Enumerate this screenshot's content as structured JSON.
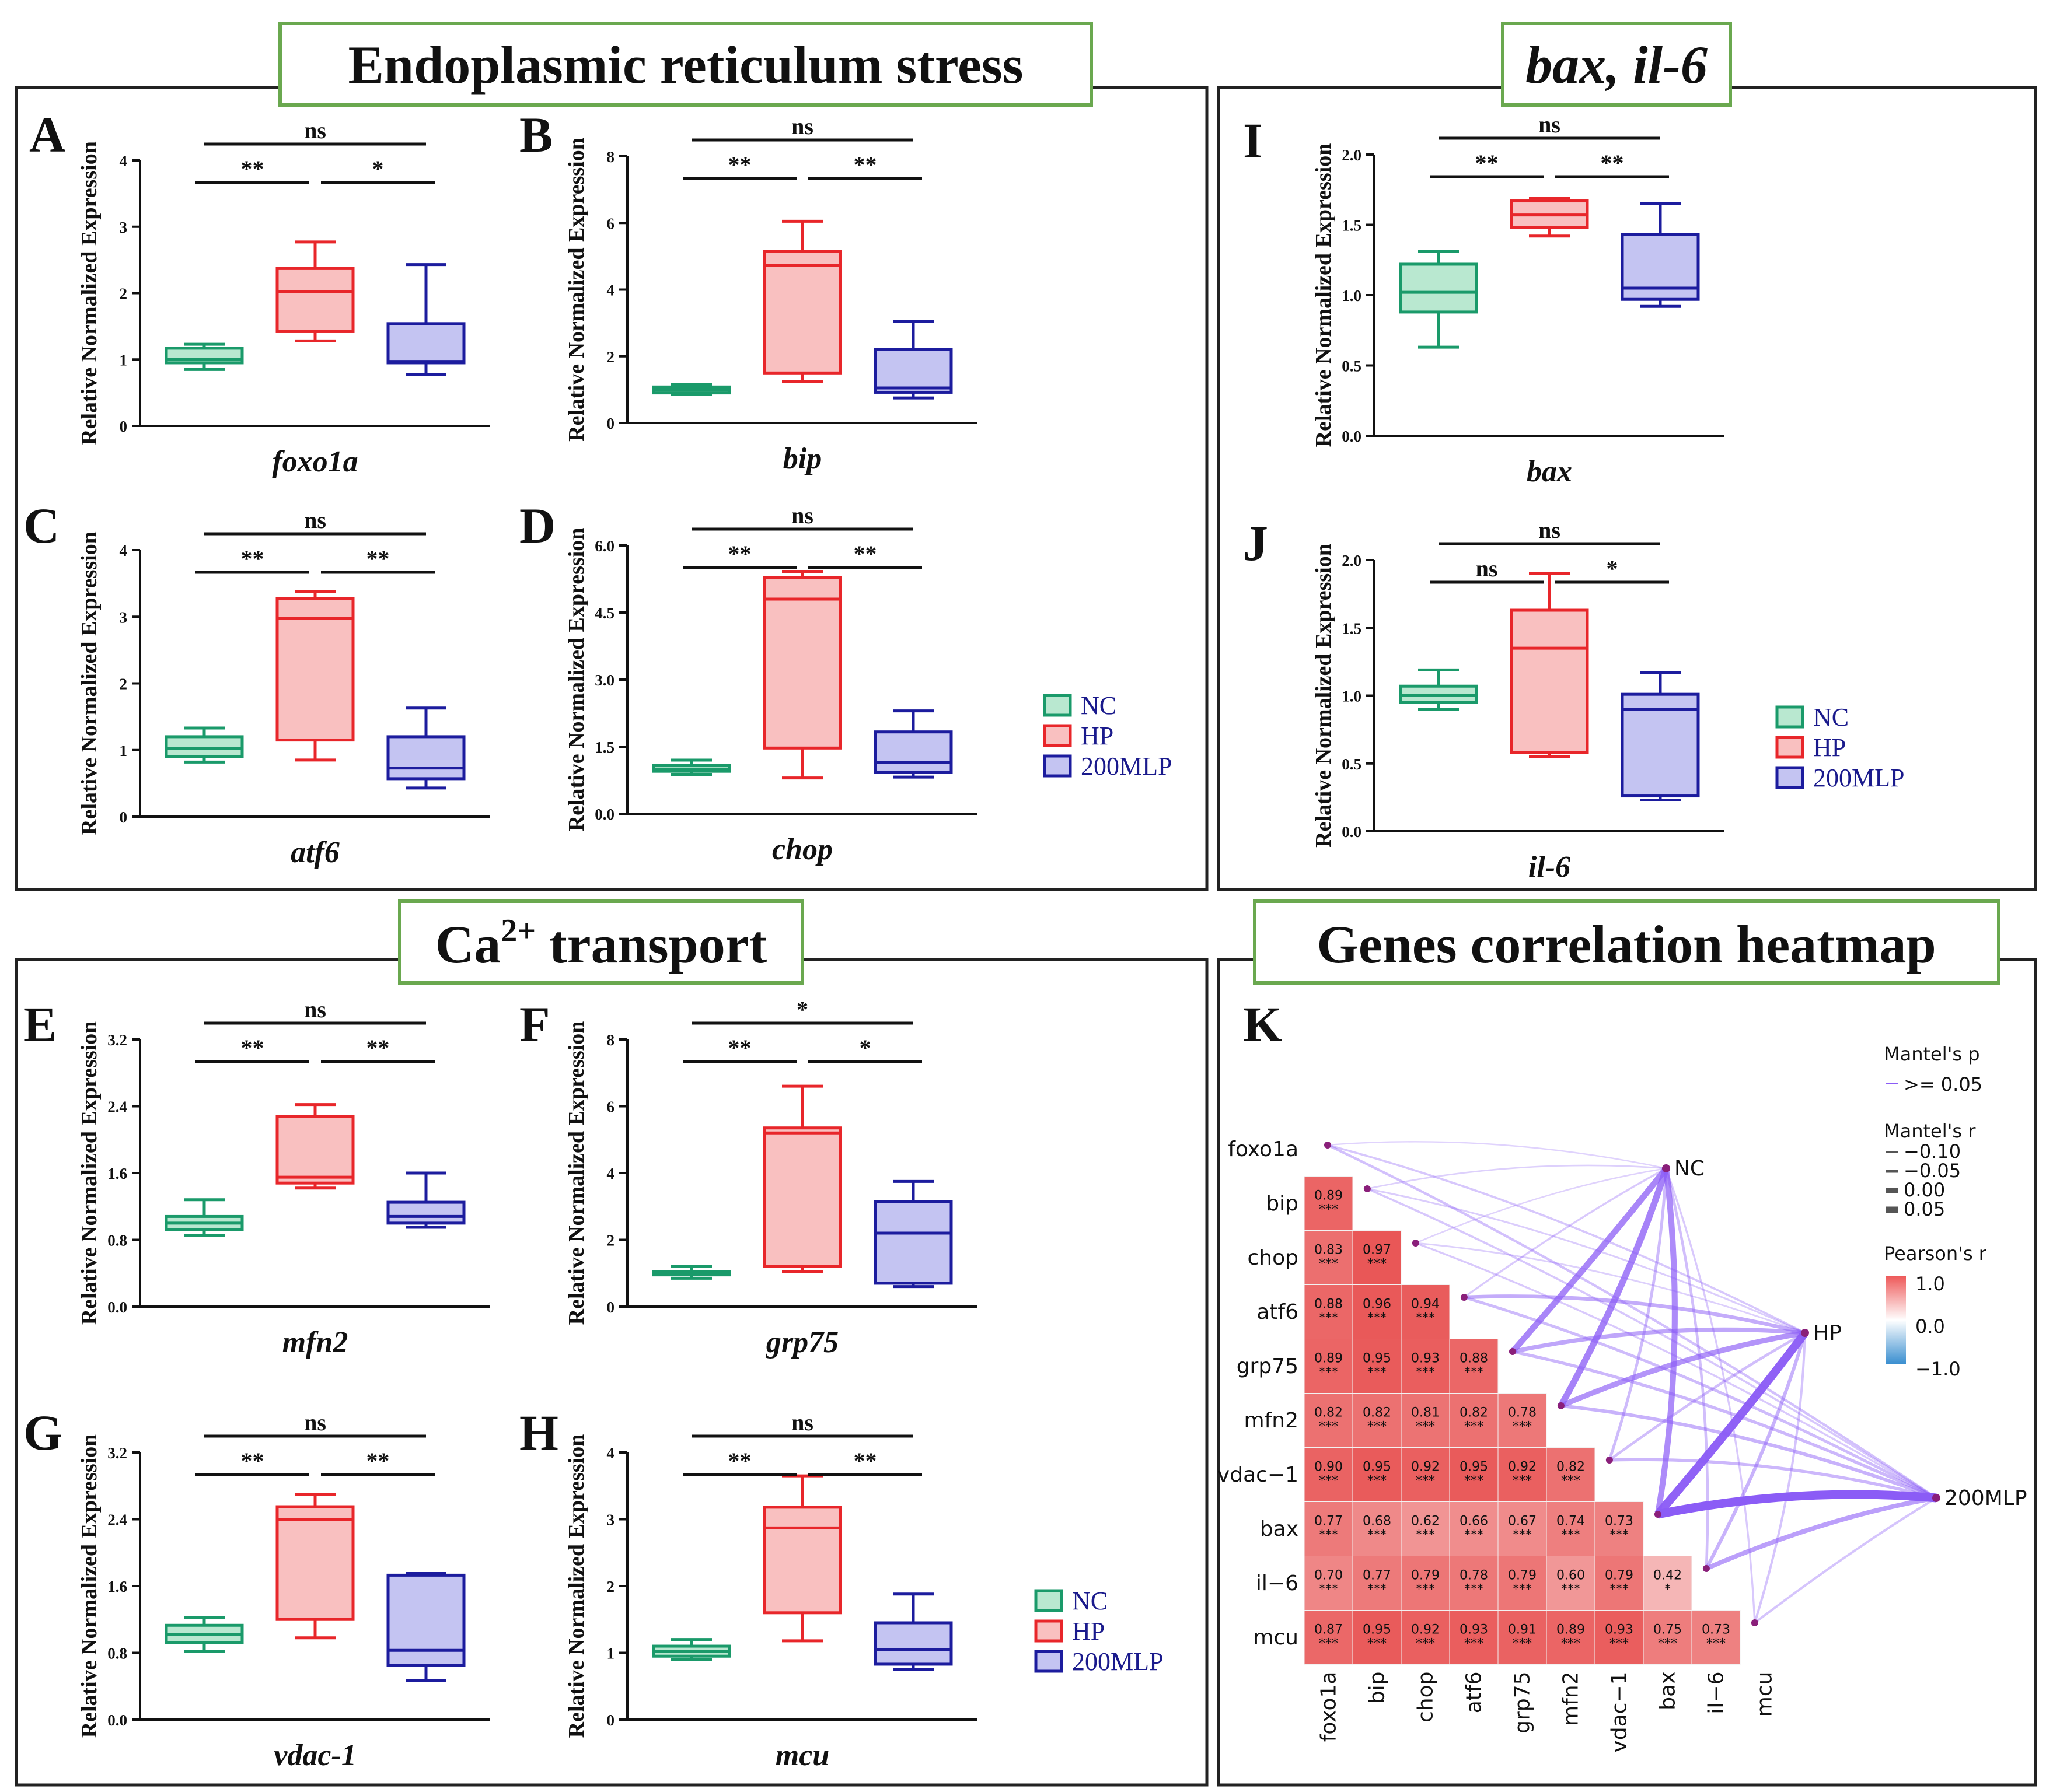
{
  "titles": {
    "er": "Endoplasmic reticulum stress",
    "bax": "bax, il-6",
    "ca_base": "Ca",
    "ca_sup": "2+",
    "ca_rest": " transport",
    "heat": "Genes correlation heatmap"
  },
  "y_axis_label": "Relative Normalized Expression",
  "legend": [
    {
      "label": "NC",
      "fill": "#b9e8d0",
      "stroke": "#1a9a6a"
    },
    {
      "label": "HP",
      "fill": "#f9c0c0",
      "stroke": "#e8262a"
    },
    {
      "label": "200MLP",
      "fill": "#c4c4f2",
      "stroke": "#1c1c9e"
    }
  ],
  "chart_data": [
    {
      "type": "box",
      "panel": "A",
      "gene": "foxo1a",
      "ylim": [
        0,
        4
      ],
      "ticks": [
        "0",
        "1",
        "2",
        "3",
        "4"
      ],
      "boxes": [
        {
          "group": "NC",
          "min": 0.85,
          "q1": 0.95,
          "median": 1.0,
          "q3": 1.17,
          "max": 1.23
        },
        {
          "group": "HP",
          "min": 1.28,
          "q1": 1.42,
          "median": 2.02,
          "q3": 2.37,
          "max": 2.77
        },
        {
          "group": "200MLP",
          "min": 0.77,
          "q1": 0.95,
          "median": 0.97,
          "q3": 1.54,
          "max": 2.43
        }
      ],
      "sig": [
        {
          "from": 0,
          "to": 2,
          "text": "ns"
        },
        {
          "from": 0,
          "to": 1,
          "text": "**"
        },
        {
          "from": 1,
          "to": 2,
          "text": "*"
        }
      ]
    },
    {
      "type": "box",
      "panel": "B",
      "gene": "bip",
      "ylim": [
        0,
        8
      ],
      "ticks": [
        "0",
        "2",
        "4",
        "6",
        "8"
      ],
      "boxes": [
        {
          "group": "NC",
          "min": 0.85,
          "q1": 0.9,
          "median": 1.0,
          "q3": 1.08,
          "max": 1.15
        },
        {
          "group": "HP",
          "min": 1.25,
          "q1": 1.5,
          "median": 4.72,
          "q3": 5.15,
          "max": 6.05
        },
        {
          "group": "200MLP",
          "min": 0.75,
          "q1": 0.92,
          "median": 1.05,
          "q3": 2.2,
          "max": 3.05
        }
      ],
      "sig": [
        {
          "from": 0,
          "to": 2,
          "text": "ns"
        },
        {
          "from": 0,
          "to": 1,
          "text": "**"
        },
        {
          "from": 1,
          "to": 2,
          "text": "**"
        }
      ]
    },
    {
      "type": "box",
      "panel": "C",
      "gene": "atf6",
      "ylim": [
        0,
        4
      ],
      "ticks": [
        "0",
        "1",
        "2",
        "3",
        "4"
      ],
      "boxes": [
        {
          "group": "NC",
          "min": 0.82,
          "q1": 0.9,
          "median": 1.02,
          "q3": 1.2,
          "max": 1.33
        },
        {
          "group": "HP",
          "min": 0.85,
          "q1": 1.15,
          "median": 2.98,
          "q3": 3.27,
          "max": 3.38
        },
        {
          "group": "200MLP",
          "min": 0.43,
          "q1": 0.57,
          "median": 0.73,
          "q3": 1.2,
          "max": 1.63
        }
      ],
      "sig": [
        {
          "from": 0,
          "to": 2,
          "text": "ns"
        },
        {
          "from": 0,
          "to": 1,
          "text": "**"
        },
        {
          "from": 1,
          "to": 2,
          "text": "**"
        }
      ]
    },
    {
      "type": "box",
      "panel": "D",
      "gene": "chop",
      "ylim": [
        0,
        6
      ],
      "ticks": [
        "0.0",
        "1.5",
        "3.0",
        "4.5",
        "6.0"
      ],
      "boxes": [
        {
          "group": "NC",
          "min": 0.88,
          "q1": 0.95,
          "median": 1.0,
          "q3": 1.08,
          "max": 1.2
        },
        {
          "group": "HP",
          "min": 0.8,
          "q1": 1.47,
          "median": 4.8,
          "q3": 5.28,
          "max": 5.42
        },
        {
          "group": "200MLP",
          "min": 0.82,
          "q1": 0.92,
          "median": 1.15,
          "q3": 1.83,
          "max": 2.3
        }
      ],
      "sig": [
        {
          "from": 0,
          "to": 2,
          "text": "ns"
        },
        {
          "from": 0,
          "to": 1,
          "text": "**"
        },
        {
          "from": 1,
          "to": 2,
          "text": "**"
        }
      ]
    },
    {
      "type": "box",
      "panel": "E",
      "gene": "mfn2",
      "ylim": [
        0,
        3.2
      ],
      "ticks": [
        "0.0",
        "0.8",
        "1.6",
        "2.4",
        "3.2"
      ],
      "boxes": [
        {
          "group": "NC",
          "min": 0.85,
          "q1": 0.92,
          "median": 1.0,
          "q3": 1.08,
          "max": 1.28
        },
        {
          "group": "HP",
          "min": 1.42,
          "q1": 1.48,
          "median": 1.55,
          "q3": 2.28,
          "max": 2.42
        },
        {
          "group": "200MLP",
          "min": 0.95,
          "q1": 1.0,
          "median": 1.08,
          "q3": 1.25,
          "max": 1.6
        }
      ],
      "sig": [
        {
          "from": 0,
          "to": 2,
          "text": "ns"
        },
        {
          "from": 0,
          "to": 1,
          "text": "**"
        },
        {
          "from": 1,
          "to": 2,
          "text": "**"
        }
      ]
    },
    {
      "type": "box",
      "panel": "F",
      "gene": "grp75",
      "ylim": [
        0,
        8
      ],
      "ticks": [
        "0",
        "2",
        "4",
        "6",
        "8"
      ],
      "boxes": [
        {
          "group": "NC",
          "min": 0.85,
          "q1": 0.95,
          "median": 1.0,
          "q3": 1.05,
          "max": 1.2
        },
        {
          "group": "HP",
          "min": 1.05,
          "q1": 1.2,
          "median": 5.2,
          "q3": 5.35,
          "max": 6.6
        },
        {
          "group": "200MLP",
          "min": 0.6,
          "q1": 0.7,
          "median": 2.2,
          "q3": 3.15,
          "max": 3.75
        }
      ],
      "sig": [
        {
          "from": 0,
          "to": 2,
          "text": "*"
        },
        {
          "from": 0,
          "to": 1,
          "text": "**"
        },
        {
          "from": 1,
          "to": 2,
          "text": "*"
        }
      ]
    },
    {
      "type": "box",
      "panel": "G",
      "gene": "vdac-1",
      "ylim": [
        0,
        3.2
      ],
      "ticks": [
        "0.0",
        "0.8",
        "1.6",
        "2.4",
        "3.2"
      ],
      "boxes": [
        {
          "group": "NC",
          "min": 0.82,
          "q1": 0.92,
          "median": 1.02,
          "q3": 1.13,
          "max": 1.22
        },
        {
          "group": "HP",
          "min": 0.98,
          "q1": 1.2,
          "median": 2.4,
          "q3": 2.55,
          "max": 2.7
        },
        {
          "group": "200MLP",
          "min": 0.47,
          "q1": 0.65,
          "median": 0.83,
          "q3": 1.73,
          "max": 1.75
        }
      ],
      "sig": [
        {
          "from": 0,
          "to": 2,
          "text": "ns"
        },
        {
          "from": 0,
          "to": 1,
          "text": "**"
        },
        {
          "from": 1,
          "to": 2,
          "text": "**"
        }
      ]
    },
    {
      "type": "box",
      "panel": "H",
      "gene": "mcu",
      "ylim": [
        0,
        4
      ],
      "ticks": [
        "0",
        "1",
        "2",
        "3",
        "4"
      ],
      "boxes": [
        {
          "group": "NC",
          "min": 0.9,
          "q1": 0.95,
          "median": 1.02,
          "q3": 1.1,
          "max": 1.2
        },
        {
          "group": "HP",
          "min": 1.18,
          "q1": 1.6,
          "median": 2.87,
          "q3": 3.18,
          "max": 3.65
        },
        {
          "group": "200MLP",
          "min": 0.75,
          "q1": 0.83,
          "median": 1.05,
          "q3": 1.45,
          "max": 1.88
        }
      ],
      "sig": [
        {
          "from": 0,
          "to": 2,
          "text": "ns"
        },
        {
          "from": 0,
          "to": 1,
          "text": "**"
        },
        {
          "from": 1,
          "to": 2,
          "text": "**"
        }
      ]
    },
    {
      "type": "box",
      "panel": "I",
      "gene": "bax",
      "ylim": [
        0,
        2
      ],
      "ticks": [
        "0.0",
        "0.5",
        "1.0",
        "1.5",
        "2.0"
      ],
      "boxes": [
        {
          "group": "NC",
          "min": 0.63,
          "q1": 0.88,
          "median": 1.02,
          "q3": 1.22,
          "max": 1.31
        },
        {
          "group": "HP",
          "min": 1.42,
          "q1": 1.48,
          "median": 1.57,
          "q3": 1.67,
          "max": 1.69
        },
        {
          "group": "200MLP",
          "min": 0.92,
          "q1": 0.97,
          "median": 1.05,
          "q3": 1.43,
          "max": 1.65
        }
      ],
      "sig": [
        {
          "from": 0,
          "to": 2,
          "text": "ns"
        },
        {
          "from": 0,
          "to": 1,
          "text": "**"
        },
        {
          "from": 1,
          "to": 2,
          "text": "**"
        }
      ]
    },
    {
      "type": "box",
      "panel": "J",
      "gene": "il-6",
      "ylim": [
        0,
        2
      ],
      "ticks": [
        "0.0",
        "0.5",
        "1.0",
        "1.5",
        "2.0"
      ],
      "boxes": [
        {
          "group": "NC",
          "min": 0.9,
          "q1": 0.95,
          "median": 1.0,
          "q3": 1.07,
          "max": 1.19
        },
        {
          "group": "HP",
          "min": 0.55,
          "q1": 0.58,
          "median": 1.35,
          "q3": 1.63,
          "max": 1.9
        },
        {
          "group": "200MLP",
          "min": 0.23,
          "q1": 0.26,
          "median": 0.9,
          "q3": 1.01,
          "max": 1.17
        }
      ],
      "sig": [
        {
          "from": 0,
          "to": 2,
          "text": "ns"
        },
        {
          "from": 0,
          "to": 1,
          "text": "ns"
        },
        {
          "from": 1,
          "to": 2,
          "text": "*"
        }
      ]
    },
    {
      "type": "heatmap",
      "panel": "K",
      "genes": [
        "foxo1a",
        "bip",
        "chop",
        "atf6",
        "grp75",
        "mfn2",
        "vdac−1",
        "bax",
        "il−6",
        "mcu"
      ],
      "row_labels": [
        "foxo1a",
        "bip",
        "chop",
        "atf6",
        "grp75",
        "mfn2",
        "vdac−1",
        "bax",
        "il−6",
        "mcu"
      ],
      "col_labels": [
        "foxo1a",
        "bip",
        "chop",
        "atf6",
        "grp75",
        "mfn2",
        "vdac−1",
        "bax",
        "il−6",
        "mcu"
      ],
      "correlations": [
        [
          0.89
        ],
        [
          0.83,
          0.97
        ],
        [
          0.88,
          0.96,
          0.94
        ],
        [
          0.89,
          0.95,
          0.93,
          0.88
        ],
        [
          0.82,
          0.82,
          0.81,
          0.82,
          0.78
        ],
        [
          0.9,
          0.95,
          0.92,
          0.95,
          0.92,
          0.82
        ],
        [
          0.77,
          0.68,
          0.62,
          0.66,
          0.67,
          0.74,
          0.73
        ],
        [
          0.7,
          0.77,
          0.79,
          0.78,
          0.79,
          0.6,
          0.79,
          0.42
        ],
        [
          0.87,
          0.95,
          0.92,
          0.93,
          0.91,
          0.89,
          0.93,
          0.75,
          0.73
        ]
      ],
      "stars": [
        [
          "***"
        ],
        [
          "***",
          "***"
        ],
        [
          "***",
          "***",
          "***"
        ],
        [
          "***",
          "***",
          "***",
          "***"
        ],
        [
          "***",
          "***",
          "***",
          "***",
          "***"
        ],
        [
          "***",
          "***",
          "***",
          "***",
          "***",
          "***"
        ],
        [
          "***",
          "***",
          "***",
          "***",
          "***",
          "***",
          "***"
        ],
        [
          "***",
          "***",
          "***",
          "***",
          "***",
          "***",
          "***",
          "*"
        ],
        [
          "***",
          "***",
          "***",
          "***",
          "***",
          "***",
          "***",
          "***",
          "***"
        ]
      ],
      "groups": [
        "NC",
        "HP",
        "200MLP"
      ],
      "mantel_links": {
        "NC": [
          0.03,
          0.05,
          0.04,
          0.1,
          0.65,
          0.7,
          0.22,
          0.62,
          0.2,
          0.1
        ],
        "HP": [
          0.12,
          0.08,
          0.06,
          0.35,
          0.4,
          0.55,
          0.2,
          0.95,
          0.3,
          0.15
        ],
        "200MLP": [
          0.18,
          0.12,
          0.1,
          0.22,
          0.25,
          0.3,
          0.25,
          1.0,
          0.45,
          0.15
        ]
      },
      "legend": {
        "mantel_p_title": "Mantel's p",
        "mantel_p_items": [
          ">= 0.05"
        ],
        "mantel_r_title": "Mantel's r",
        "mantel_r_items": [
          "−0.10",
          "−0.05",
          "0.00",
          "0.05"
        ],
        "pearson_title": "Pearson's r",
        "pearson_ticks": [
          "1.0",
          "0.0",
          "−1.0"
        ]
      },
      "link_color": "#8b5cf6"
    }
  ]
}
